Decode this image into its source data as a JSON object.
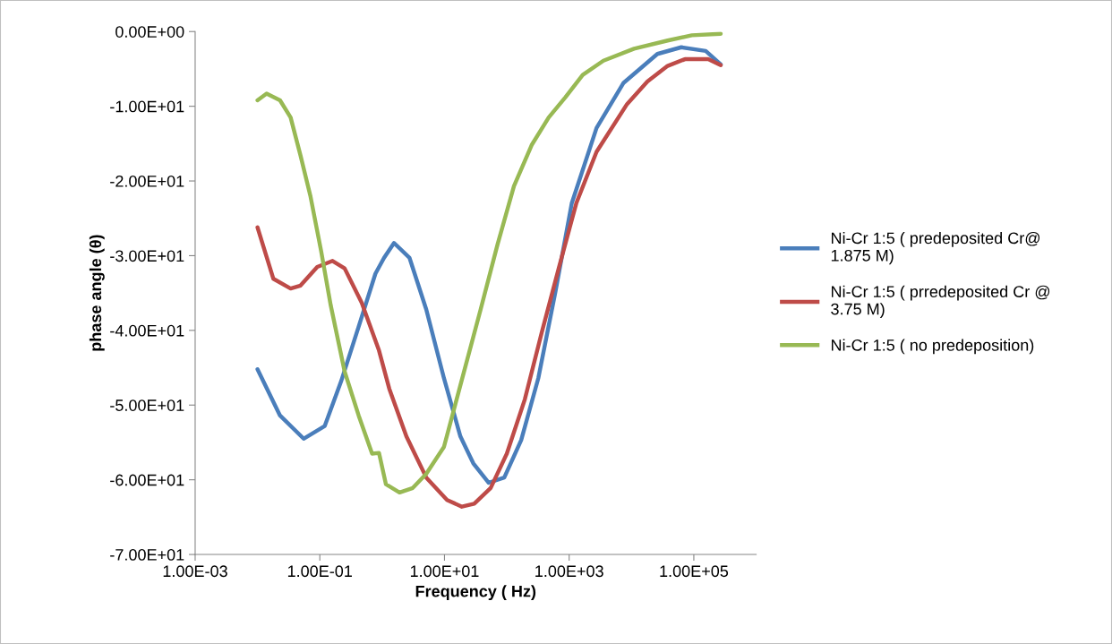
{
  "chart_data": {
    "type": "line",
    "xlabel": "Frequency ( Hz)",
    "ylabel": "phase angle (θ)",
    "log": "x",
    "xlim": [
      0.001,
      1000000
    ],
    "xticks": [
      {
        "value": 0.001,
        "label": "1.00E-03"
      },
      {
        "value": 0.1,
        "label": "1.00E-01"
      },
      {
        "value": 10,
        "label": "1.00E+01"
      },
      {
        "value": 1000,
        "label": "1.00E+03"
      },
      {
        "value": 100000,
        "label": "1.00E+05"
      }
    ],
    "ylim": [
      -70,
      0
    ],
    "yticks": [
      {
        "value": -70,
        "label": "-7.00E+01"
      },
      {
        "value": -60,
        "label": "-6.00E+01"
      },
      {
        "value": -50,
        "label": "-5.00E+01"
      },
      {
        "value": -40,
        "label": "-4.00E+01"
      },
      {
        "value": -30,
        "label": "-3.00E+01"
      },
      {
        "value": -20,
        "label": "-2.00E+01"
      },
      {
        "value": -10,
        "label": "-1.00E+01"
      },
      {
        "value": 0,
        "label": "0.00E+00"
      }
    ],
    "grid": false,
    "legend": "right",
    "marker": "none",
    "line_style": "solid",
    "series": [
      {
        "name": "Ni-Cr 1:5 ( predeposited Cr@\n1.875 M)",
        "color": "#4a7ebb",
        "x": [
          0.01,
          0.023,
          0.055,
          0.12,
          0.22,
          0.42,
          0.78,
          1.07,
          1.55,
          2.75,
          5.1,
          9.8,
          18,
          29,
          51,
          91,
          170,
          320,
          600,
          1100,
          2750,
          7400,
          26000,
          63000,
          155000,
          270000
        ],
        "values": [
          -45.2,
          -51.4,
          -54.5,
          -52.8,
          -46.8,
          -39.5,
          -32.4,
          -30.3,
          -28.3,
          -30.3,
          -37.2,
          -46.4,
          -54.2,
          -57.8,
          -60.4,
          -59.7,
          -54.7,
          -46.4,
          -34.9,
          -23.0,
          -12.9,
          -6.9,
          -3.0,
          -2.1,
          -2.6,
          -4.4
        ]
      },
      {
        "name": "Ni-Cr 1:5 ( prredeposited Cr @\n3.75 M)",
        "color": "#be4b48",
        "x": [
          0.01,
          0.018,
          0.034,
          0.049,
          0.091,
          0.16,
          0.25,
          0.47,
          0.89,
          1.3,
          2.45,
          5.1,
          11,
          19,
          30,
          55,
          100,
          195,
          360,
          680,
          1300,
          2750,
          8500,
          18000,
          38000,
          72000,
          170000,
          270000
        ],
        "values": [
          -26.2,
          -33.1,
          -34.4,
          -34.0,
          -31.5,
          -30.7,
          -31.7,
          -36.3,
          -42.7,
          -47.8,
          -54.2,
          -59.7,
          -62.7,
          -63.6,
          -63.2,
          -61.1,
          -56.5,
          -49.2,
          -40.4,
          -31.7,
          -23.0,
          -16.1,
          -9.7,
          -6.7,
          -4.6,
          -3.7,
          -3.7,
          -4.5
        ]
      },
      {
        "name": "Ni-Cr 1:5 ( no predeposition)",
        "color": "#98b954",
        "x": [
          0.01,
          0.014,
          0.023,
          0.034,
          0.049,
          0.071,
          0.105,
          0.15,
          0.25,
          0.42,
          0.69,
          0.89,
          1.15,
          1.9,
          3.1,
          5.1,
          9.8,
          20,
          38,
          71,
          130,
          250,
          470,
          870,
          1650,
          3550,
          11000,
          38000,
          93000,
          270000
        ],
        "values": [
          -9.2,
          -8.3,
          -9.2,
          -11.5,
          -16.6,
          -22.1,
          -29.4,
          -36.7,
          -45.5,
          -51.4,
          -56.5,
          -56.4,
          -60.6,
          -61.7,
          -61.1,
          -59.2,
          -55.6,
          -45.9,
          -37.2,
          -28.5,
          -20.7,
          -15.2,
          -11.5,
          -8.8,
          -5.8,
          -3.9,
          -2.3,
          -1.2,
          -0.5,
          -0.3
        ]
      }
    ]
  }
}
